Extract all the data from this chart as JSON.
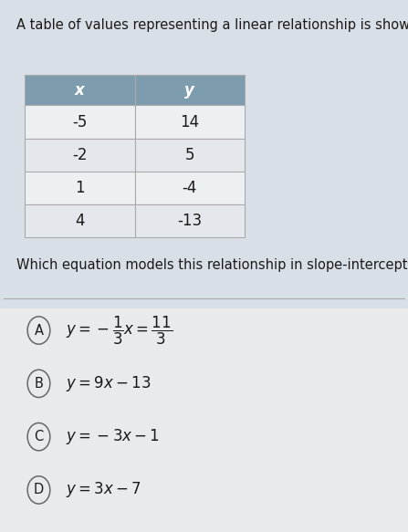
{
  "title": "A table of values representing a linear relationship is shown.",
  "question": "Which equation models this relationship in slope-intercept form?",
  "table_headers": [
    "x",
    "y"
  ],
  "table_data": [
    [
      "-5",
      "14"
    ],
    [
      "-2",
      "5"
    ],
    [
      "1",
      "-4"
    ],
    [
      "4",
      "-13"
    ]
  ],
  "header_bg": "#7d9daf",
  "row_bg": "#edf0f2",
  "row_bg_alt": "#e4e8ec",
  "table_border": "#aaaaaa",
  "bg_color_top": "#d8dfe6",
  "bg_color_bottom": "#e8eaec",
  "text_color": "#1a1a1a",
  "divider_color": "#aaaaaa",
  "circle_color": "#666666",
  "title_fontsize": 10.5,
  "question_fontsize": 10.5,
  "choice_fontsize": 12,
  "table_fontsize": 12,
  "header_fontsize": 12,
  "figsize": [
    4.47,
    5.83
  ],
  "dpi": 100
}
